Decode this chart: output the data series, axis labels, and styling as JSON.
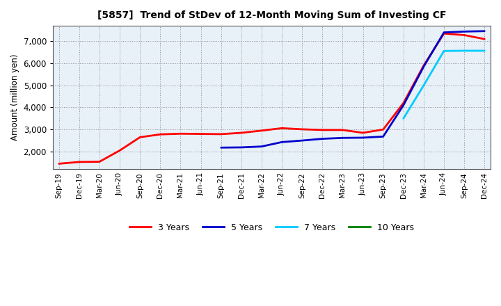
{
  "title": "[5857]  Trend of StDev of 12-Month Moving Sum of Investing CF",
  "ylabel": "Amount (million yen)",
  "background_color": "#ffffff",
  "plot_bg_color": "#e8f0f8",
  "grid_color": "#aaaaaa",
  "ylim": [
    1200,
    7700
  ],
  "yticks": [
    2000,
    3000,
    4000,
    5000,
    6000,
    7000
  ],
  "xtick_labels": [
    "Sep-19",
    "Dec-19",
    "Mar-20",
    "Jun-20",
    "Sep-20",
    "Dec-20",
    "Mar-21",
    "Jun-21",
    "Sep-21",
    "Dec-21",
    "Mar-22",
    "Jun-22",
    "Sep-22",
    "Dec-22",
    "Mar-23",
    "Jun-23",
    "Sep-23",
    "Dec-23",
    "Mar-24",
    "Jun-24",
    "Sep-24",
    "Dec-24"
  ],
  "series": {
    "3 Years": {
      "color": "#ff0000",
      "data": {
        "Sep-19": 1450,
        "Dec-19": 1530,
        "Mar-20": 1540,
        "Jun-20": 2050,
        "Sep-20": 2650,
        "Dec-20": 2780,
        "Mar-21": 2810,
        "Jun-21": 2800,
        "Sep-21": 2790,
        "Dec-21": 2850,
        "Mar-22": 2950,
        "Jun-22": 3060,
        "Sep-22": 3010,
        "Dec-22": 2980,
        "Mar-23": 2980,
        "Jun-23": 2850,
        "Sep-23": 3000,
        "Dec-23": 4200,
        "Mar-24": 5900,
        "Jun-24": 7350,
        "Sep-24": 7280,
        "Dec-24": 7100
      }
    },
    "5 Years": {
      "color": "#0000cc",
      "data": {
        "Sep-21": 2180,
        "Dec-21": 2190,
        "Mar-22": 2230,
        "Jun-22": 2430,
        "Sep-22": 2500,
        "Dec-22": 2580,
        "Mar-23": 2620,
        "Jun-23": 2630,
        "Sep-23": 2680,
        "Dec-23": 4100,
        "Mar-24": 5850,
        "Jun-24": 7400,
        "Sep-24": 7440,
        "Dec-24": 7460
      }
    },
    "7 Years": {
      "color": "#00ccff",
      "data": {
        "Dec-23": 3500,
        "Mar-24": 5000,
        "Jun-24": 6560,
        "Sep-24": 6570,
        "Dec-24": 6570
      }
    },
    "10 Years": {
      "color": "#008000",
      "data": {}
    }
  },
  "legend_entries": [
    "3 Years",
    "5 Years",
    "7 Years",
    "10 Years"
  ],
  "legend_colors": [
    "#ff0000",
    "#0000cc",
    "#00ccff",
    "#008000"
  ],
  "legend_linewidths": [
    2.0,
    2.0,
    2.0,
    2.0
  ]
}
